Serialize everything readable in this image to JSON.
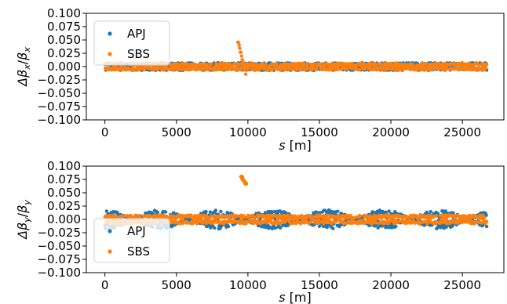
{
  "chart_data": [
    {
      "type": "scatter",
      "ylabel": "Δβ_x/β_x",
      "xlabel": "s [m]",
      "xlim": [
        -1300,
        27900
      ],
      "ylim": [
        -0.1,
        0.1
      ],
      "xticks": [
        0,
        5000,
        10000,
        15000,
        20000,
        25000
      ],
      "yticks": [
        0.1,
        0.075,
        0.05,
        0.025,
        0.0,
        -0.025,
        -0.05,
        -0.075,
        -0.1
      ],
      "ytick_labels": [
        "0.100",
        "0.075",
        "0.050",
        "0.025",
        "0.000",
        "−0.025",
        "−0.050",
        "−0.075",
        "−0.100"
      ],
      "grid": false,
      "legend": "upper-left",
      "series": [
        {
          "name": "APJ",
          "color": "#1f77b4",
          "s_range": [
            0,
            26700
          ],
          "base_amplitude": 0.007,
          "pattern": "uniform band"
        },
        {
          "name": "SBS",
          "color": "#ff7f0e",
          "s_range": [
            0,
            26700
          ],
          "base_amplitude": 0.006,
          "pattern": "uniform band",
          "feature": {
            "s_start": 9300,
            "s_end": 9850,
            "y_peak": 0.048,
            "y_end": -0.012
          }
        }
      ]
    },
    {
      "type": "scatter",
      "ylabel": "Δβ_y/β_y",
      "xlabel": "s [m]",
      "xlim": [
        -1300,
        27900
      ],
      "ylim": [
        -0.1,
        0.1
      ],
      "xticks": [
        0,
        5000,
        10000,
        15000,
        20000,
        25000
      ],
      "yticks": [
        0.1,
        0.075,
        0.05,
        0.025,
        0.0,
        -0.025,
        -0.05,
        -0.075,
        -0.1
      ],
      "ytick_labels": [
        "0.100",
        "0.075",
        "0.050",
        "0.025",
        "0.000",
        "−0.025",
        "−0.050",
        "−0.075",
        "−0.100"
      ],
      "grid": false,
      "legend": "lower-left",
      "series": [
        {
          "name": "APJ",
          "color": "#1f77b4",
          "s_range": [
            0,
            26700
          ],
          "base_amplitude": 0.018,
          "pattern": "beating, period 3900 m"
        },
        {
          "name": "SBS",
          "color": "#ff7f0e",
          "s_range": [
            0,
            26700
          ],
          "base_amplitude": 0.008,
          "pattern": "uniform band",
          "feature": {
            "s_start": 9500,
            "s_end": 9900,
            "y_peak": 0.082,
            "y_end": 0.065
          }
        }
      ]
    }
  ]
}
